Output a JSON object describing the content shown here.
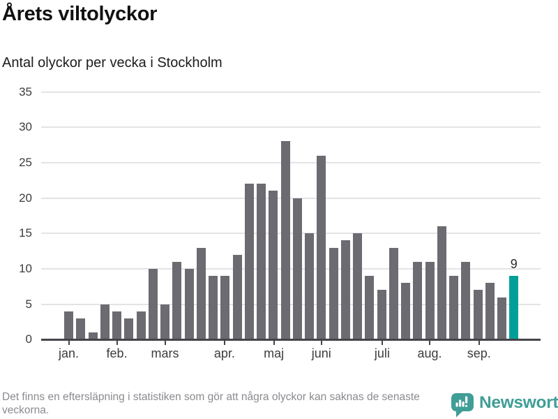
{
  "header": {
    "title": "Årets viltolyckor",
    "subtitle": "Antal olyckor per vecka i Stockholm"
  },
  "chart_data": {
    "type": "bar",
    "title": "Årets viltolyckor",
    "subtitle": "Antal olyckor per vecka i Stockholm",
    "x_unit": "vecka",
    "weeks_start": 1,
    "values": [
      4,
      3,
      1,
      5,
      4,
      3,
      4,
      10,
      5,
      11,
      10,
      13,
      9,
      9,
      12,
      22,
      22,
      21,
      28,
      20,
      15,
      26,
      13,
      14,
      15,
      9,
      7,
      13,
      8,
      11,
      11,
      16,
      9,
      11,
      7,
      8,
      6,
      9
    ],
    "highlight": {
      "week": 38,
      "value": 9,
      "label": "9"
    },
    "yticks": [
      0,
      5,
      10,
      15,
      20,
      25,
      30,
      35
    ],
    "ylim": [
      0,
      35
    ],
    "grid": true,
    "legend_position": "none",
    "bar_color": "#6c6b71",
    "highlight_color": "#00a099",
    "month_ticks": [
      {
        "label": "jan.",
        "week": 1
      },
      {
        "label": "feb.",
        "week": 5
      },
      {
        "label": "mars",
        "week": 9
      },
      {
        "label": "apr.",
        "week": 13.95
      },
      {
        "label": "maj",
        "week": 18.05
      },
      {
        "label": "juni",
        "week": 22
      },
      {
        "label": "juli",
        "week": 27.05
      },
      {
        "label": "aug.",
        "week": 31
      },
      {
        "label": "sep.",
        "week": 35.1
      }
    ]
  },
  "footer": {
    "note": "Det finns en eftersläpning i statistiken som gör att några olyckor kan saknas de senaste veckorna.",
    "brand": "Newsworthy"
  },
  "colors": {
    "accent": "#00a099",
    "brand": "#3f9e97",
    "bar": "#6c6b71",
    "axis": "#454449",
    "grid": "#e4e4e6"
  }
}
